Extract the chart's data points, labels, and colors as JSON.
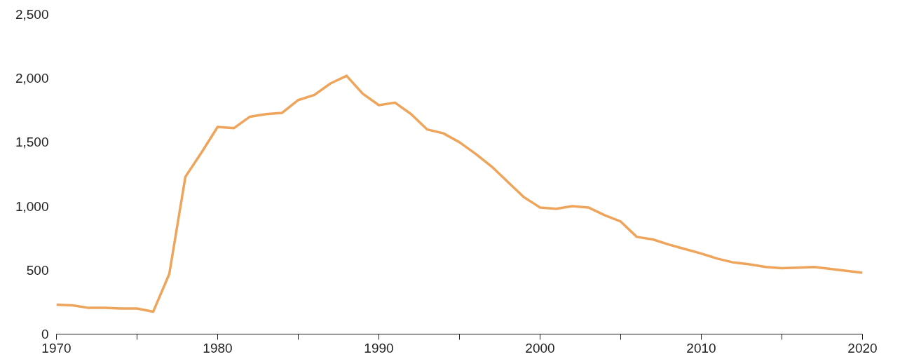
{
  "chart_data": {
    "type": "line",
    "x": [
      1970,
      1971,
      1972,
      1973,
      1974,
      1975,
      1976,
      1977,
      1978,
      1979,
      1980,
      1981,
      1982,
      1983,
      1984,
      1985,
      1986,
      1987,
      1988,
      1989,
      1990,
      1991,
      1992,
      1993,
      1994,
      1995,
      1996,
      1997,
      1998,
      1999,
      2000,
      2001,
      2002,
      2003,
      2004,
      2005,
      2006,
      2007,
      2008,
      2009,
      2010,
      2011,
      2012,
      2013,
      2014,
      2015,
      2016,
      2017,
      2018,
      2019,
      2020
    ],
    "series": [
      {
        "color": "#eea45a",
        "values": [
          230,
          225,
          205,
          205,
          200,
          200,
          175,
          470,
          1230,
          1420,
          1620,
          1610,
          1700,
          1720,
          1730,
          1830,
          1870,
          1960,
          2020,
          1880,
          1790,
          1810,
          1720,
          1600,
          1570,
          1500,
          1410,
          1310,
          1190,
          1070,
          990,
          980,
          1000,
          990,
          930,
          880,
          760,
          740,
          700,
          665,
          630,
          590,
          560,
          545,
          525,
          515,
          520,
          525,
          510,
          495,
          480
        ]
      }
    ],
    "xlim": [
      1970,
      2020
    ],
    "ylim": [
      0,
      2500
    ],
    "xticks": [
      1970,
      {
        "value": 1975,
        "label": null
      },
      1980,
      {
        "value": 1985,
        "label": null
      },
      1990,
      {
        "value": 1995,
        "label": null
      },
      2000,
      {
        "value": 2005,
        "label": null
      },
      2010,
      {
        "value": 2015,
        "label": null
      },
      2020
    ],
    "yticks": [
      {
        "value": 0,
        "label": "0"
      },
      {
        "value": 500,
        "label": "500"
      },
      {
        "value": 1000,
        "label": "1,000"
      },
      {
        "value": 1500,
        "label": "1,500"
      },
      {
        "value": 2000,
        "label": "2,000"
      },
      {
        "value": 2500,
        "label": "2,500"
      }
    ],
    "grid": false,
    "marker": "none",
    "line_style": "solid"
  }
}
